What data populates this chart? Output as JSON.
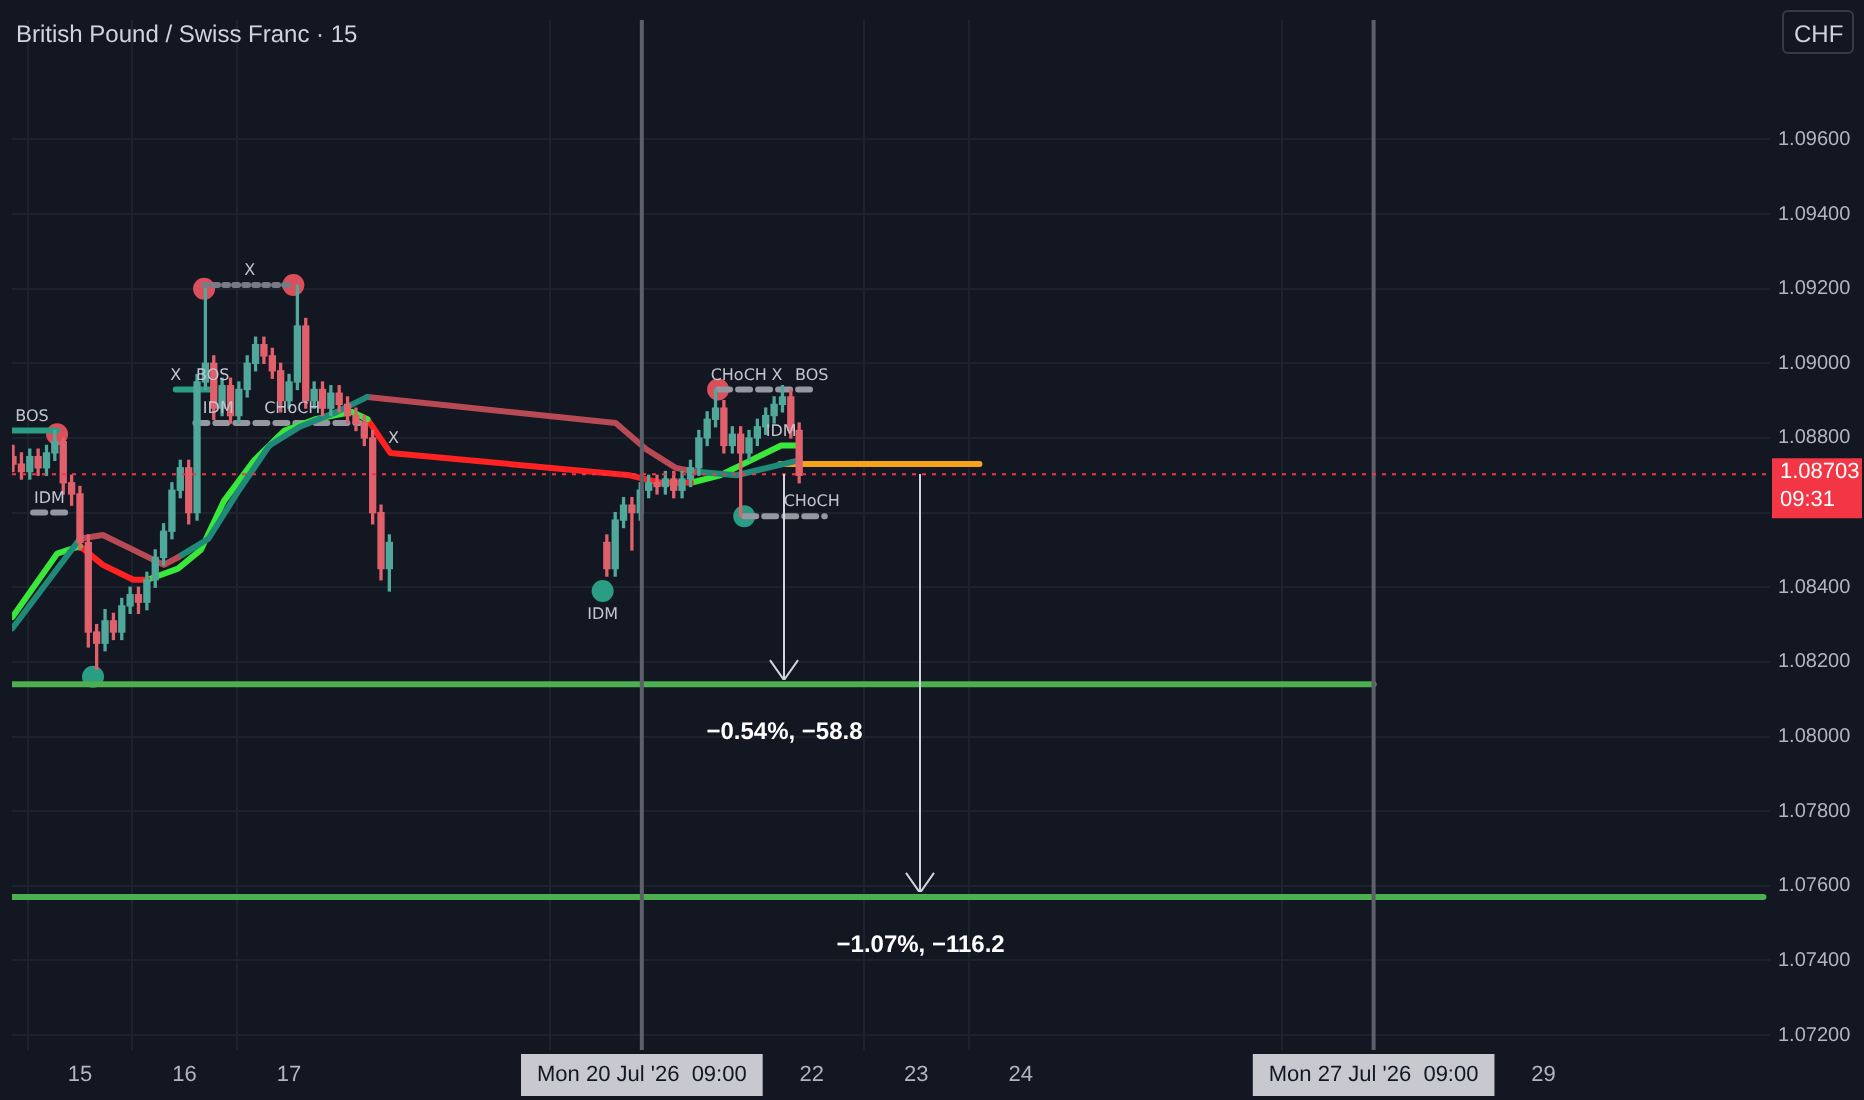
{
  "chart_data": {
    "type": "candlestick",
    "title": "British Pound / Swiss Franc · 15",
    "ylabel": "CHF",
    "x": [
      "2026-07-14T08:38",
      "2026-07-14T10:34",
      "2026-07-14T12:29",
      "2026-07-14T14:24",
      "2026-07-14T16:19",
      "2026-07-14T18:14",
      "2026-07-14T20:10",
      "2026-07-14T22:05",
      "2026-07-15T00:00",
      "2026-07-15T01:55",
      "2026-07-15T03:50",
      "2026-07-15T05:46",
      "2026-07-15T07:41",
      "2026-07-15T09:36",
      "2026-07-15T11:31",
      "2026-07-15T13:26",
      "2026-07-15T15:22",
      "2026-07-15T17:17",
      "2026-07-15T19:12",
      "2026-07-15T21:07",
      "2026-07-15T23:02",
      "2026-07-16T00:58",
      "2026-07-16T02:53",
      "2026-07-16T04:48",
      "2026-07-16T06:43",
      "2026-07-16T08:38",
      "2026-07-16T10:34",
      "2026-07-16T12:29",
      "2026-07-16T14:24",
      "2026-07-16T16:19",
      "2026-07-16T18:14",
      "2026-07-16T20:10",
      "2026-07-16T22:05",
      "2026-07-17T00:00",
      "2026-07-17T01:55",
      "2026-07-17T03:50",
      "2026-07-17T05:46",
      "2026-07-17T07:41",
      "2026-07-17T09:36",
      "2026-07-17T11:31",
      "2026-07-17T13:26",
      "2026-07-17T15:22",
      "2026-07-17T17:17",
      "2026-07-17T19:12",
      "2026-07-17T21:07",
      "2026-07-17T23:02",
      "2026-07-20T00:58",
      "2026-07-20T02:53",
      "2026-07-20T04:48",
      "2026-07-20T06:43",
      "2026-07-20T08:38",
      "2026-07-20T10:34",
      "2026-07-20T12:29",
      "2026-07-20T14:24",
      "2026-07-20T16:19",
      "2026-07-20T18:14",
      "2026-07-20T20:10",
      "2026-07-20T22:05",
      "2026-07-21T00:00",
      "2026-07-21T01:55",
      "2026-07-21T03:50",
      "2026-07-21T05:46",
      "2026-07-21T07:41",
      "2026-07-21T09:36",
      "2026-07-21T11:31",
      "2026-07-21T13:26",
      "2026-07-21T15:22",
      "2026-07-21T17:17",
      "2026-07-21T19:12",
      "2026-07-21T21:07"
    ],
    "ohlc": [
      [
        1.0875,
        1.0878,
        1.0871,
        1.0873
      ],
      [
        1.0873,
        1.0876,
        1.0869,
        1.0871
      ],
      [
        1.0871,
        1.0877,
        1.0869,
        1.0875
      ],
      [
        1.0875,
        1.0877,
        1.087,
        1.0872
      ],
      [
        1.0872,
        1.0878,
        1.087,
        1.0876
      ],
      [
        1.0876,
        1.0882,
        1.0874,
        1.0879
      ],
      [
        1.0879,
        1.088,
        1.0865,
        1.0868
      ],
      [
        1.0868,
        1.087,
        1.0862,
        1.0865
      ],
      [
        1.0865,
        1.0867,
        1.085,
        1.0852
      ],
      [
        1.0852,
        1.0854,
        1.0824,
        1.0828
      ],
      [
        1.0828,
        1.083,
        1.0818,
        1.0825
      ],
      [
        1.0825,
        1.0834,
        1.0823,
        1.0831
      ],
      [
        1.0831,
        1.0833,
        1.0826,
        1.0828
      ],
      [
        1.0828,
        1.0837,
        1.0826,
        1.0835
      ],
      [
        1.0835,
        1.084,
        1.0833,
        1.0838
      ],
      [
        1.0838,
        1.084,
        1.0833,
        1.0836
      ],
      [
        1.0836,
        1.0844,
        1.0834,
        1.0842
      ],
      [
        1.0842,
        1.085,
        1.084,
        1.0848
      ],
      [
        1.0848,
        1.0857,
        1.0846,
        1.0855
      ],
      [
        1.0855,
        1.0868,
        1.0853,
        1.0866
      ],
      [
        1.0866,
        1.0874,
        1.0864,
        1.0872
      ],
      [
        1.0872,
        1.0874,
        1.0857,
        1.086
      ],
      [
        1.086,
        1.0897,
        1.0858,
        1.0895
      ],
      [
        1.0895,
        1.092,
        1.0893,
        1.09
      ],
      [
        1.09,
        1.0902,
        1.0885,
        1.0888
      ],
      [
        1.0888,
        1.0896,
        1.0886,
        1.0894
      ],
      [
        1.0894,
        1.0896,
        1.0884,
        1.0886
      ],
      [
        1.0886,
        1.0895,
        1.0884,
        1.0893
      ],
      [
        1.0893,
        1.0902,
        1.0891,
        1.09
      ],
      [
        1.09,
        1.0907,
        1.0898,
        1.0905
      ],
      [
        1.0905,
        1.0907,
        1.09,
        1.0902
      ],
      [
        1.0902,
        1.0904,
        1.0896,
        1.0898
      ],
      [
        1.0898,
        1.09,
        1.0887,
        1.089
      ],
      [
        1.089,
        1.0897,
        1.0888,
        1.0895
      ],
      [
        1.0895,
        1.0921,
        1.0893,
        1.091
      ],
      [
        1.091,
        1.0912,
        1.0888,
        1.089
      ],
      [
        1.089,
        1.0895,
        1.0888,
        1.0893
      ],
      [
        1.0893,
        1.0895,
        1.0886,
        1.0888
      ],
      [
        1.0888,
        1.0894,
        1.0886,
        1.0892
      ],
      [
        1.0892,
        1.0894,
        1.0887,
        1.0889
      ],
      [
        1.0889,
        1.0891,
        1.0884,
        1.0886
      ],
      [
        1.0886,
        1.0888,
        1.0882,
        1.0884
      ],
      [
        1.0884,
        1.0886,
        1.0878,
        1.088
      ],
      [
        1.088,
        1.0882,
        1.0857,
        1.086
      ],
      [
        1.086,
        1.0862,
        1.0842,
        1.0845
      ],
      [
        1.0845,
        1.0854,
        1.0839,
        1.0852
      ],
      [
        1.0852,
        1.0854,
        1.0843,
        1.0845
      ],
      [
        1.0845,
        1.086,
        1.0843,
        1.0858
      ],
      [
        1.0858,
        1.0864,
        1.0856,
        1.0862
      ],
      [
        1.0862,
        1.0864,
        1.085,
        1.086
      ],
      [
        1.086,
        1.0868,
        1.0858,
        1.0866
      ],
      [
        1.0866,
        1.087,
        1.0864,
        1.0868
      ],
      [
        1.0868,
        1.087,
        1.0865,
        1.0867
      ],
      [
        1.0867,
        1.0871,
        1.0865,
        1.0869
      ],
      [
        1.0869,
        1.0871,
        1.0864,
        1.0866
      ],
      [
        1.0866,
        1.0871,
        1.0864,
        1.0869
      ],
      [
        1.0869,
        1.0874,
        1.0867,
        1.0872
      ],
      [
        1.0872,
        1.0882,
        1.087,
        1.088
      ],
      [
        1.088,
        1.0887,
        1.0878,
        1.0885
      ],
      [
        1.0885,
        1.0893,
        1.0883,
        1.0888
      ],
      [
        1.0888,
        1.089,
        1.0876,
        1.0878
      ],
      [
        1.0878,
        1.0883,
        1.0876,
        1.0881
      ],
      [
        1.0881,
        1.0883,
        1.0859,
        1.0876
      ],
      [
        1.0876,
        1.0882,
        1.0874,
        1.088
      ],
      [
        1.088,
        1.0885,
        1.0878,
        1.0883
      ],
      [
        1.0883,
        1.0888,
        1.0881,
        1.0886
      ],
      [
        1.0886,
        1.0891,
        1.0884,
        1.0889
      ],
      [
        1.0889,
        1.0894,
        1.0887,
        1.0891
      ],
      [
        1.0891,
        1.0893,
        1.088,
        1.0882
      ],
      [
        1.0882,
        1.0884,
        1.0868,
        1.087
      ]
    ],
    "colors": [
      "#e0606c",
      "#e0606c",
      "#4fa89a",
      "#e0606c",
      "#4fa89a",
      "#4fa89a",
      "#e0606c",
      "#e0606c",
      "#e0606c",
      "#e0606c",
      "#e0606c",
      "#4fa89a",
      "#e0606c",
      "#4fa89a",
      "#4fa89a",
      "#e0606c",
      "#4fa89a",
      "#4fa89a",
      "#4fa89a",
      "#4fa89a",
      "#4fa89a",
      "#e0606c",
      "#4fa89a",
      "#4fa89a",
      "#e0606c",
      "#4fa89a",
      "#e0606c",
      "#4fa89a",
      "#4fa89a",
      "#4fa89a",
      "#e0606c",
      "#e0606c",
      "#e0606c",
      "#4fa89a",
      "#4fa89a",
      "#e0606c",
      "#4fa89a",
      "#e0606c",
      "#4fa89a",
      "#e0606c",
      "#e0606c",
      "#e0606c",
      "#e0606c",
      "#e0606c",
      "#e0606c",
      "#4fa89a",
      "#e0606c",
      "#4fa89a",
      "#4fa89a",
      "#e0606c",
      "#4fa89a",
      "#4fa89a",
      "#e0606c",
      "#4fa89a",
      "#e0606c",
      "#4fa89a",
      "#4fa89a",
      "#4fa89a",
      "#4fa89a",
      "#4fa89a",
      "#e0606c",
      "#4fa89a",
      "#e0606c",
      "#4fa89a",
      "#4fa89a",
      "#4fa89a",
      "#4fa89a",
      "#4fa89a",
      "#e0606c",
      "#e0606c"
    ],
    "series": [
      {
        "type": "line",
        "color": "#1f8a7a",
        "x": [
          "2026-07-14T08:30",
          "2026-07-15T00:00"
        ],
        "values": [
          1.0829,
          1.0853
        ]
      },
      {
        "type": "line",
        "color": "#b84a55",
        "x": [
          "2026-07-15T00:00",
          "2026-07-15T05:15",
          "2026-07-15T12:15",
          "2026-07-15T19:15",
          "2026-07-15T22:30"
        ],
        "values": [
          1.0853,
          1.0854,
          1.085,
          1.0846,
          1.0848
        ]
      },
      {
        "type": "line",
        "color": "#1f8a7a",
        "x": [
          "2026-07-15T22:30",
          "2026-07-16T05:30",
          "2026-07-16T12:30",
          "2026-07-16T19:30",
          "2026-07-17T02:30",
          "2026-07-17T11:00",
          "2026-07-17T18:00"
        ],
        "values": [
          1.0848,
          1.0853,
          1.0866,
          1.0878,
          1.0883,
          1.0887,
          1.0891
        ]
      },
      {
        "type": "line",
        "color": "#b84a55",
        "x": [
          "2026-07-17T18:00",
          "2026-07-20T03:00",
          "2026-07-20T10:00",
          "2026-07-20T16:45",
          "2026-07-20T21:00"
        ],
        "values": [
          1.0891,
          1.0884,
          1.0877,
          1.0872,
          1.0871
        ]
      },
      {
        "type": "line",
        "color": "#1f8a7a",
        "x": [
          "2026-07-20T21:00",
          "2026-07-21T06:45",
          "2026-07-21T21:00"
        ],
        "values": [
          1.0871,
          1.087,
          1.0874
        ]
      },
      {
        "type": "line",
        "color": "#39e83a",
        "x": [
          "2026-07-14T08:30",
          "2026-07-14T18:45",
          "2026-07-15T00:00"
        ],
        "values": [
          1.0832,
          1.0849,
          1.0851
        ]
      },
      {
        "type": "line",
        "color": "#ff2222",
        "x": [
          "2026-07-15T00:00",
          "2026-07-15T05:15",
          "2026-07-15T12:15",
          "2026-07-15T15:30"
        ],
        "values": [
          1.0851,
          1.0846,
          1.0842,
          1.0842
        ]
      },
      {
        "type": "line",
        "color": "#39e83a",
        "x": [
          "2026-07-15T15:30",
          "2026-07-15T22:30",
          "2026-07-16T03:45",
          "2026-07-16T09:00",
          "2026-07-16T16:00",
          "2026-07-16T23:00",
          "2026-07-17T06:00",
          "2026-07-17T14:30",
          "2026-07-17T18:00"
        ],
        "values": [
          1.0842,
          1.0845,
          1.085,
          1.0863,
          1.0874,
          1.0882,
          1.0885,
          1.0887,
          1.0885
        ]
      },
      {
        "type": "line",
        "color": "#ff2222",
        "x": [
          "2026-07-17T18:00",
          "2026-07-17T23:15",
          "2026-07-20T06:15",
          "2026-07-20T13:15",
          "2026-07-20T20:15"
        ],
        "values": [
          1.0885,
          1.0876,
          1.087,
          1.0868,
          1.0868
        ]
      },
      {
        "type": "line",
        "color": "#39e83a",
        "x": [
          "2026-07-20T20:15",
          "2026-07-21T03:00",
          "2026-07-21T10:00",
          "2026-07-21T17:00",
          "2026-07-21T21:00"
        ],
        "values": [
          1.0868,
          1.087,
          1.0874,
          1.0878,
          1.0878
        ]
      },
      {
        "type": "line",
        "color": "#2a9d84",
        "x": [
          "2026-07-14T08:30",
          "2026-07-14T18:45"
        ],
        "values": [
          1.0882,
          1.0882
        ]
      },
      {
        "type": "line",
        "color": "#9598a1",
        "line_style": "dashed",
        "x": [
          "2026-07-14T13:15",
          "2026-07-14T21:30"
        ],
        "values": [
          1.086,
          1.086
        ]
      },
      {
        "type": "line",
        "color": "#2a9d84",
        "x": [
          "2026-07-15T22:00",
          "2026-07-16T06:30"
        ],
        "values": [
          1.0893,
          1.0893
        ]
      },
      {
        "type": "line",
        "color": "#787b86",
        "line_style": "dotted",
        "x": [
          "2026-07-16T04:30",
          "2026-07-17T01:00"
        ],
        "values": [
          1.0921,
          1.0921
        ]
      },
      {
        "type": "line",
        "color": "#9598a1",
        "line_style": "dashed",
        "x": [
          "2026-07-16T02:30",
          "2026-07-17T16:15"
        ],
        "values": [
          1.0884,
          1.0884
        ]
      },
      {
        "type": "line",
        "color": "#9598a1",
        "line_style": "dashed",
        "x": [
          "2026-07-21T02:30",
          "2026-07-22T01:00"
        ],
        "values": [
          1.0893,
          1.0893
        ]
      },
      {
        "type": "line",
        "color": "#9598a1",
        "line_style": "dashed",
        "x": [
          "2026-07-21T08:30",
          "2026-07-22T03:00"
        ],
        "values": [
          1.0859,
          1.0859
        ]
      },
      {
        "type": "line",
        "color": "#4caf50",
        "x": [
          "2026-07-14T08:30",
          "2026-07-27T09:00"
        ],
        "values": [
          1.0814,
          1.0814
        ]
      },
      {
        "type": "line",
        "color": "#4caf50",
        "x": [
          "2026-07-14T08:30",
          "2026-07-31T02:30"
        ],
        "values": [
          1.0757,
          1.0757
        ]
      },
      {
        "type": "line",
        "color": "#f7a21b",
        "x": [
          "2026-07-21T16:45",
          "2026-07-23T14:30"
        ],
        "values": [
          1.0873,
          1.0873
        ]
      },
      {
        "type": "scatter",
        "marker": "circle",
        "color": "#d9505c",
        "x": [
          "2026-07-14T18:45",
          "2026-07-16T04:30",
          "2026-07-17T01:00",
          "2026-07-21T02:30"
        ],
        "values": [
          1.0881,
          1.092,
          1.0921,
          1.0893
        ]
      },
      {
        "type": "scatter",
        "marker": "circle",
        "color": "#2a9d84",
        "x": [
          "2026-07-15T03:00",
          "2026-07-20T00:00",
          "2026-07-21T08:30"
        ],
        "values": [
          1.0816,
          1.0839,
          1.0859
        ]
      }
    ],
    "xlim": [
      "2026-07-14T08:24",
      "2026-07-31T04:00"
    ],
    "ylim": [
      1.0716,
      1.0992
    ],
    "xticks": [
      {
        "value": "2026-07-15",
        "label": "15"
      },
      {
        "value": "2026-07-16",
        "label": "16"
      },
      {
        "value": "2026-07-17",
        "label": "17"
      },
      {
        "value": "2026-07-22",
        "label": "22"
      },
      {
        "value": "2026-07-23",
        "label": "23"
      },
      {
        "value": "2026-07-24",
        "label": "24"
      },
      {
        "value": "2026-07-29",
        "label": "29"
      }
    ],
    "yticks": [
      {
        "value": 1.072,
        "label": "1.07200"
      },
      {
        "value": 1.074,
        "label": "1.07400"
      },
      {
        "value": 1.076,
        "label": "1.07600"
      },
      {
        "value": 1.078,
        "label": "1.07800"
      },
      {
        "value": 1.08,
        "label": "1.08000"
      },
      {
        "value": 1.082,
        "label": "1.08200"
      },
      {
        "value": 1.084,
        "label": "1.08400"
      },
      {
        "value": 1.086,
        "label": null
      },
      {
        "value": 1.088,
        "label": "1.08800"
      },
      {
        "value": 1.09,
        "label": "1.09000"
      },
      {
        "value": 1.092,
        "label": "1.09200"
      },
      {
        "value": 1.094,
        "label": "1.09400"
      },
      {
        "value": 1.096,
        "label": "1.09600"
      }
    ],
    "ref_lines": [
      {
        "axis": "x",
        "value": "2026-07-20T09:00",
        "label": "Mon 20 Jul '26  09:00",
        "color": "#5d606b"
      },
      {
        "axis": "x",
        "value": "2026-07-27T09:00",
        "label": "Mon 27 Jul '26  09:00",
        "color": "#5d606b"
      },
      {
        "axis": "y",
        "value": 1.08703,
        "label": "1.08703\n09:31",
        "color": "#f23645",
        "line_style": "dotted"
      }
    ],
    "annotations": [
      {
        "text": "BOS",
        "x": "2026-07-14T13:00",
        "y": 1.0882
      },
      {
        "text": "IDM",
        "x": "2026-07-14T17:00",
        "y": 1.086
      },
      {
        "text": "X",
        "x": "2026-07-16T15:00",
        "y": 1.0921
      },
      {
        "text": "X",
        "x": "2026-07-15T22:00",
        "y": 1.0893
      },
      {
        "text": "BOS",
        "x": "2026-07-16T06:30",
        "y": 1.0893
      },
      {
        "text": "IDM",
        "x": "2026-07-16T07:45",
        "y": 1.0884
      },
      {
        "text": "CHoCH",
        "x": "2026-07-17T00:45",
        "y": 1.0884
      },
      {
        "text": "X",
        "x": "2026-07-18T00:00",
        "y": 1.0876
      },
      {
        "text": "IDM",
        "x": "2026-07-20T00:00",
        "y": 1.0839
      },
      {
        "text": "CHoCH",
        "x": "2026-07-21T07:15",
        "y": 1.0893
      },
      {
        "text": "X",
        "x": "2026-07-21T16:00",
        "y": 1.0893
      },
      {
        "text": "BOS",
        "x": "2026-07-22T00:00",
        "y": 1.0893
      },
      {
        "text": "IDM",
        "x": "2026-07-21T17:00",
        "y": 1.0878
      },
      {
        "text": "CHoCH",
        "x": "2026-07-22T00:00",
        "y": 1.0859
      },
      {
        "text": "−0.54%, −58.8",
        "x": "2026-07-21T17:45",
        "y": 1.0814
      },
      {
        "text": "−1.07%, −116.2",
        "x": "2026-07-23T01:00",
        "y": 1.0757
      }
    ],
    "grid": true,
    "legend": false
  }
}
